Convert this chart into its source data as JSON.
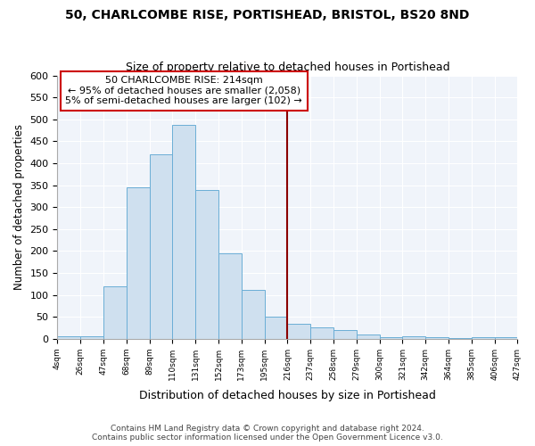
{
  "title1": "50, CHARLCOMBE RISE, PORTISHEAD, BRISTOL, BS20 8ND",
  "title2": "Size of property relative to detached houses in Portishead",
  "xlabel": "Distribution of detached houses by size in Portishead",
  "ylabel": "Number of detached properties",
  "bar_color": "#cfe0ef",
  "bar_edge_color": "#6baed6",
  "categories": [
    "4sqm",
    "26sqm",
    "47sqm",
    "68sqm",
    "89sqm",
    "110sqm",
    "131sqm",
    "152sqm",
    "173sqm",
    "195sqm",
    "216sqm",
    "237sqm",
    "258sqm",
    "279sqm",
    "300sqm",
    "321sqm",
    "342sqm",
    "364sqm",
    "385sqm",
    "406sqm",
    "427sqm"
  ],
  "values": [
    5,
    6,
    120,
    345,
    420,
    488,
    338,
    195,
    112,
    50,
    35,
    27,
    20,
    9,
    3,
    5,
    3,
    2,
    3,
    4
  ],
  "vline_color": "#8b0000",
  "annotation_text": "50 CHARLCOMBE RISE: 214sqm\n← 95% of detached houses are smaller (2,058)\n5% of semi-detached houses are larger (102) →",
  "annotation_box_color": "#ffffff",
  "annotation_edge_color": "#cc0000",
  "ylim": [
    0,
    600
  ],
  "yticks": [
    0,
    50,
    100,
    150,
    200,
    250,
    300,
    350,
    400,
    450,
    500,
    550,
    600
  ],
  "footer1": "Contains HM Land Registry data © Crown copyright and database right 2024.",
  "footer2": "Contains public sector information licensed under the Open Government Licence v3.0.",
  "bg_color": "#f0f4fa",
  "grid_color": "#ffffff",
  "plot_bg_color": "#f0f4fa"
}
